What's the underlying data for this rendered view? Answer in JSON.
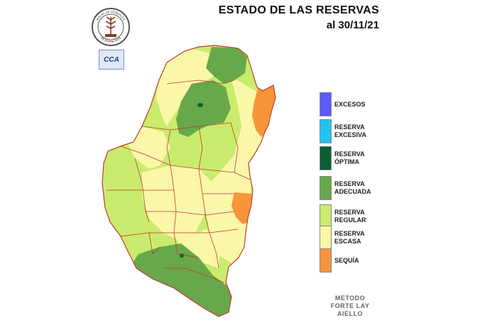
{
  "title": {
    "line1": "ESTADO DE LAS RESERVAS",
    "line2": "al 30/11/21"
  },
  "logos": {
    "seal_text_top": "BOLSA DE CEREALES",
    "seal_text_bottom": "DE ENTRE RIOS",
    "cca_text": "CCA"
  },
  "legend": {
    "items": [
      {
        "line1": "EXCESOS",
        "line2": "",
        "color": "#5a5aff"
      },
      {
        "line1": "RESERVA",
        "line2": "EXCESIVA",
        "color": "#22c3f4"
      },
      {
        "line1": "RESERVA",
        "line2": "ÓPTIMA",
        "color": "#0c5e33"
      },
      {
        "line1": "RESERVA",
        "line2": "ADECUADA",
        "color": "#67a84a"
      },
      {
        "line1": "RESERVA",
        "line2": "REGULAR",
        "color": "#c9ec6e"
      },
      {
        "line1": "RESERVA",
        "line2": "ESCASA",
        "color": "#fbf7a9"
      },
      {
        "line1": "SEQUÍA",
        "line2": "",
        "color": "#f7953a"
      }
    ]
  },
  "method": {
    "line1": "METODO",
    "line2": "FORTE LAY",
    "line3": "AIELLO"
  },
  "map_colors": {
    "border": "#c0392b",
    "adequate": "#67a84a",
    "optimal": "#0c5e33",
    "regular": "#c9ec6e",
    "scarce": "#fbf7a9",
    "drought": "#f7953a"
  }
}
